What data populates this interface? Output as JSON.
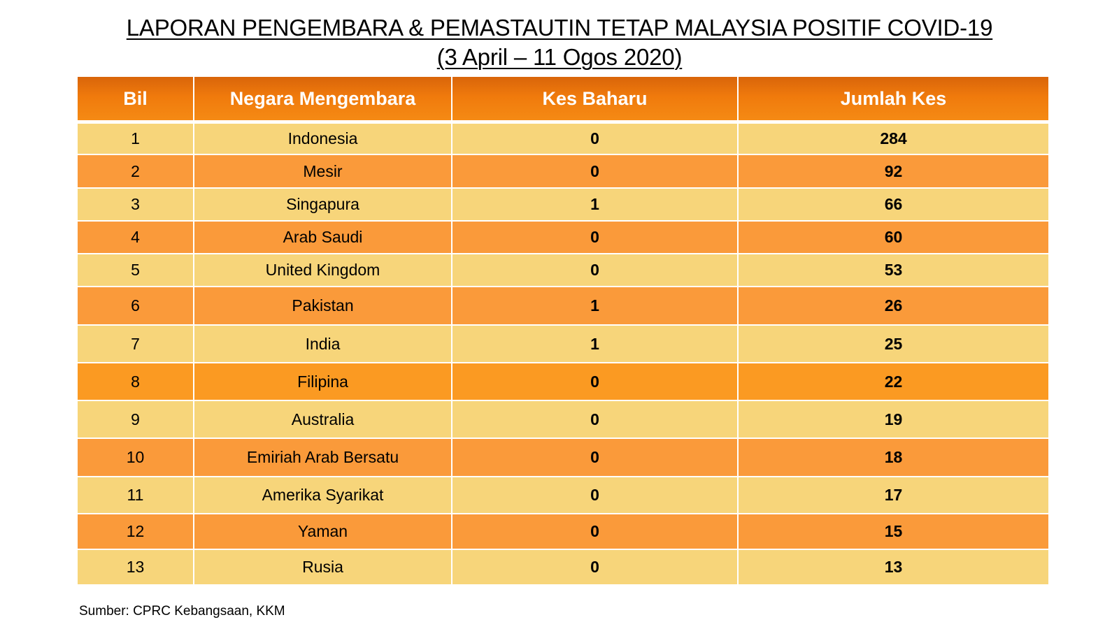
{
  "title": {
    "line1": "LAPORAN PENGEMBARA & PEMASTAUTIN TETAP MALAYSIA POSITIF COVID-19",
    "line2": "(3 April – 11 Ogos 2020)"
  },
  "colors": {
    "header_orange": "#f07a0c",
    "row_light": "#f7d57a",
    "row_dark": "#fa9a3a"
  },
  "chart_data": {
    "type": "table",
    "title": "LAPORAN PENGEMBARA & PEMASTAUTIN TETAP MALAYSIA POSITIF COVID-19",
    "subtitle": "(3 April – 11 Ogos 2020)",
    "columns": [
      "Bil",
      "Negara Mengembara",
      "Kes Baharu",
      "Jumlah Kes"
    ],
    "rows": [
      {
        "bil": "1",
        "country": "Indonesia",
        "new": "0",
        "total": "284"
      },
      {
        "bil": "2",
        "country": "Mesir",
        "new": "0",
        "total": "92"
      },
      {
        "bil": "3",
        "country": "Singapura",
        "new": "1",
        "total": "66"
      },
      {
        "bil": "4",
        "country": "Arab Saudi",
        "new": "0",
        "total": "60"
      },
      {
        "bil": "5",
        "country": "United Kingdom",
        "new": "0",
        "total": "53"
      },
      {
        "bil": "6",
        "country": "Pakistan",
        "new": "1",
        "total": "26"
      },
      {
        "bil": "7",
        "country": "India",
        "new": "1",
        "total": "25"
      },
      {
        "bil": "8",
        "country": "Filipina",
        "new": "0",
        "total": "22"
      },
      {
        "bil": "9",
        "country": "Australia",
        "new": "0",
        "total": "19"
      },
      {
        "bil": "10",
        "country": "Emiriah Arab Bersatu",
        "new": "0",
        "total": "18"
      },
      {
        "bil": "11",
        "country": "Amerika Syarikat",
        "new": "0",
        "total": "17"
      },
      {
        "bil": "12",
        "country": "Yaman",
        "new": "0",
        "total": "15"
      },
      {
        "bil": "13",
        "country": "Rusia",
        "new": "0",
        "total": "13"
      }
    ]
  },
  "source": "Sumber: CPRC Kebangsaan, KKM"
}
